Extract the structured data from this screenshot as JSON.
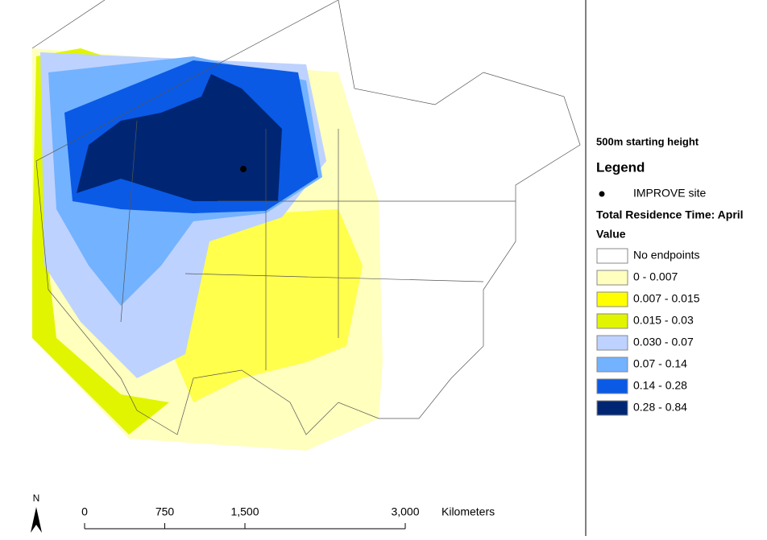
{
  "map": {
    "subtitle": "500m starting height",
    "legend": {
      "title": "Legend",
      "site": "IMPROVE site",
      "layer": "Total Residence Time: April",
      "field": "Value",
      "classes": [
        {
          "label": "No endpoints",
          "color": "#ffffff"
        },
        {
          "label": "0 - 0.007",
          "color": "#ffffbe"
        },
        {
          "label": "0.007 - 0.015",
          "color": "#ffff00"
        },
        {
          "label": "0.015 - 0.03",
          "color": "#e1f500"
        },
        {
          "label": "0.030 - 0.07",
          "color": "#bed2ff"
        },
        {
          "label": "0.07 - 0.14",
          "color": "#73b2ff"
        },
        {
          "label": "0.14 - 0.28",
          "color": "#0a5ae6"
        },
        {
          "label": "0.28 - 0.84",
          "color": "#002673"
        }
      ]
    },
    "scale_bar": {
      "ticks": [
        {
          "value": 0,
          "label": "0"
        },
        {
          "value": 750,
          "label": "750"
        },
        {
          "value": 1500,
          "label": "1,500"
        },
        {
          "value": 3000,
          "label": "3,000"
        }
      ],
      "unit": "Kilometers"
    },
    "north": "N"
  }
}
